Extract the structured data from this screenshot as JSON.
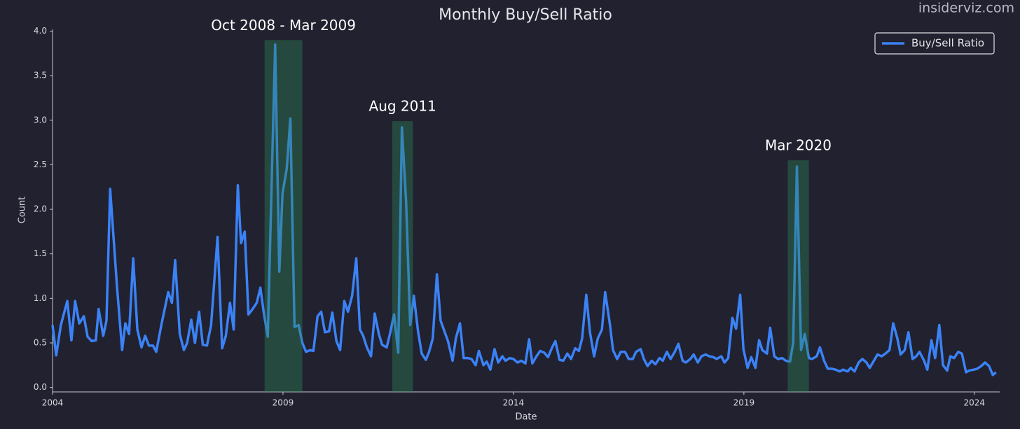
{
  "chart_data": {
    "type": "line",
    "title": "Monthly Buy/Sell Ratio",
    "watermark": "insiderviz.com",
    "xlabel": "Date",
    "ylabel": "Count",
    "xlim": [
      2004,
      2024.55
    ],
    "xticks": [
      2004,
      2009,
      2014,
      2019,
      2024
    ],
    "ylim": [
      -0.05,
      4.02
    ],
    "yticks": [
      {
        "value": 0,
        "label": "0.0"
      },
      0.5,
      {
        "value": 1,
        "label": "1.0"
      },
      1.5,
      {
        "value": 2,
        "label": "2.0"
      },
      2.5,
      {
        "value": 3,
        "label": "3.0"
      },
      3.5,
      {
        "value": 4,
        "label": "4.0"
      }
    ],
    "grid": false,
    "legend": "upper right",
    "annotations": [
      {
        "label": "Oct 2008 - Mar 2009",
        "x0": 2008.6,
        "x1": 2009.42,
        "top": 3.9
      },
      {
        "label": "Aug 2011",
        "x0": 2011.37,
        "x1": 2011.82,
        "top": 2.99
      },
      {
        "label": "Mar 2020",
        "x0": 2019.95,
        "x1": 2020.41,
        "top": 2.55
      }
    ],
    "highlight_color": "#2e8b57",
    "x": [
      2004.0,
      2004.08,
      2004.18,
      2004.32,
      2004.41,
      2004.49,
      2004.58,
      2004.68,
      2004.76,
      2004.85,
      2004.94,
      2005.0,
      2005.1,
      2005.17,
      2005.25,
      2005.4,
      2005.51,
      2005.58,
      2005.66,
      2005.75,
      2005.84,
      2005.93,
      2006.01,
      2006.09,
      2006.18,
      2006.25,
      2006.36,
      2006.51,
      2006.59,
      2006.66,
      2006.76,
      2006.85,
      2006.92,
      2007.01,
      2007.09,
      2007.18,
      2007.26,
      2007.35,
      2007.44,
      2007.58,
      2007.68,
      2007.76,
      2007.85,
      2007.93,
      2008.02,
      2008.09,
      2008.17,
      2008.25,
      2008.34,
      2008.43,
      2008.51,
      2008.58,
      2008.67,
      2008.83,
      2008.92,
      2008.99,
      2009.08,
      2009.16,
      2009.25,
      2009.34,
      2009.42,
      2009.5,
      2009.59,
      2009.66,
      2009.75,
      2009.83,
      2009.91,
      2010.0,
      2010.07,
      2010.16,
      2010.24,
      2010.33,
      2010.41,
      2010.5,
      2010.59,
      2010.67,
      2010.74,
      2010.82,
      2010.91,
      2010.99,
      2011.08,
      2011.15,
      2011.25,
      2011.32,
      2011.41,
      2011.5,
      2011.58,
      2011.67,
      2011.76,
      2011.84,
      2011.93,
      2012.01,
      2012.1,
      2012.17,
      2012.25,
      2012.34,
      2012.42,
      2012.51,
      2012.58,
      2012.68,
      2012.75,
      2012.84,
      2012.92,
      2013.01,
      2013.09,
      2013.18,
      2013.25,
      2013.35,
      2013.42,
      2013.5,
      2013.59,
      2013.67,
      2013.76,
      2013.83,
      2013.92,
      2014.0,
      2014.09,
      2014.17,
      2014.26,
      2014.34,
      2014.41,
      2014.5,
      2014.58,
      2014.67,
      2014.75,
      2014.84,
      2014.91,
      2015.0,
      2015.08,
      2015.17,
      2015.25,
      2015.34,
      2015.42,
      2015.49,
      2015.58,
      2015.66,
      2015.75,
      2015.83,
      2015.92,
      2015.99,
      2016.09,
      2016.16,
      2016.25,
      2016.33,
      2016.42,
      2016.5,
      2016.59,
      2016.66,
      2016.76,
      2016.83,
      2016.91,
      2017.0,
      2017.08,
      2017.17,
      2017.24,
      2017.33,
      2017.41,
      2017.5,
      2017.58,
      2017.67,
      2017.74,
      2017.84,
      2017.91,
      2018.0,
      2018.08,
      2018.17,
      2018.25,
      2018.34,
      2018.41,
      2018.51,
      2018.58,
      2018.66,
      2018.75,
      2018.83,
      2018.92,
      2018.99,
      2019.08,
      2019.16,
      2019.25,
      2019.33,
      2019.4,
      2019.5,
      2019.57,
      2019.66,
      2019.74,
      2019.83,
      2019.91,
      2020.0,
      2020.07,
      2020.15,
      2020.24,
      2020.32,
      2020.41,
      2020.48,
      2020.58,
      2020.65,
      2020.74,
      2020.82,
      2020.91,
      2020.99,
      2021.08,
      2021.15,
      2021.25,
      2021.32,
      2021.4,
      2021.49,
      2021.57,
      2021.66,
      2021.73,
      2021.82,
      2021.9,
      2021.99,
      2022.07,
      2022.16,
      2022.24,
      2022.33,
      2022.4,
      2022.49,
      2022.57,
      2022.66,
      2022.74,
      2022.81,
      2022.91,
      2022.98,
      2023.07,
      2023.15,
      2023.24,
      2023.32,
      2023.41,
      2023.48,
      2023.56,
      2023.65,
      2023.73,
      2023.82,
      2023.89,
      2023.99,
      2024.06,
      2024.15,
      2024.23,
      2024.32,
      2024.4,
      2024.47
    ],
    "series": [
      {
        "name": "Buy/Sell Ratio",
        "color": "#3b82f6",
        "values": [
          0.7,
          0.36,
          0.7,
          0.97,
          0.53,
          0.97,
          0.72,
          0.8,
          0.57,
          0.52,
          0.53,
          0.88,
          0.58,
          0.75,
          2.23,
          1.12,
          0.42,
          0.72,
          0.6,
          1.45,
          0.65,
          0.45,
          0.58,
          0.47,
          0.47,
          0.4,
          0.7,
          1.07,
          0.95,
          1.43,
          0.6,
          0.42,
          0.5,
          0.76,
          0.5,
          0.85,
          0.48,
          0.47,
          0.7,
          1.69,
          0.44,
          0.58,
          0.95,
          0.65,
          2.27,
          1.62,
          1.75,
          0.82,
          0.88,
          0.95,
          1.12,
          0.85,
          0.57,
          3.85,
          1.3,
          2.18,
          2.45,
          3.02,
          0.68,
          0.7,
          0.5,
          0.4,
          0.42,
          0.41,
          0.8,
          0.85,
          0.62,
          0.63,
          0.84,
          0.52,
          0.42,
          0.97,
          0.85,
          1.03,
          1.45,
          0.65,
          0.58,
          0.45,
          0.35,
          0.83,
          0.6,
          0.48,
          0.45,
          0.6,
          0.82,
          0.39,
          2.92,
          2.1,
          0.7,
          1.03,
          0.63,
          0.38,
          0.31,
          0.4,
          0.55,
          1.27,
          0.75,
          0.62,
          0.52,
          0.3,
          0.55,
          0.72,
          0.33,
          0.33,
          0.32,
          0.25,
          0.41,
          0.25,
          0.29,
          0.2,
          0.43,
          0.28,
          0.35,
          0.3,
          0.33,
          0.32,
          0.28,
          0.3,
          0.27,
          0.54,
          0.27,
          0.35,
          0.41,
          0.39,
          0.34,
          0.45,
          0.52,
          0.31,
          0.3,
          0.38,
          0.32,
          0.44,
          0.41,
          0.55,
          1.04,
          0.62,
          0.35,
          0.55,
          0.65,
          1.07,
          0.72,
          0.42,
          0.32,
          0.4,
          0.4,
          0.32,
          0.32,
          0.4,
          0.43,
          0.32,
          0.24,
          0.3,
          0.26,
          0.33,
          0.3,
          0.4,
          0.32,
          0.4,
          0.49,
          0.3,
          0.28,
          0.32,
          0.37,
          0.28,
          0.35,
          0.37,
          0.35,
          0.34,
          0.32,
          0.35,
          0.28,
          0.33,
          0.78,
          0.66,
          1.04,
          0.43,
          0.22,
          0.34,
          0.22,
          0.53,
          0.42,
          0.38,
          0.67,
          0.35,
          0.32,
          0.33,
          0.3,
          0.29,
          0.5,
          2.48,
          0.42,
          0.6,
          0.33,
          0.32,
          0.35,
          0.45,
          0.3,
          0.21,
          0.21,
          0.2,
          0.18,
          0.2,
          0.18,
          0.22,
          0.18,
          0.28,
          0.32,
          0.28,
          0.22,
          0.3,
          0.37,
          0.35,
          0.38,
          0.42,
          0.72,
          0.55,
          0.37,
          0.42,
          0.62,
          0.32,
          0.35,
          0.4,
          0.3,
          0.2,
          0.53,
          0.33,
          0.7,
          0.25,
          0.19,
          0.35,
          0.33,
          0.4,
          0.38,
          0.17,
          0.19,
          0.2,
          0.21,
          0.24,
          0.28,
          0.24,
          0.14,
          0.17
        ]
      }
    ]
  }
}
